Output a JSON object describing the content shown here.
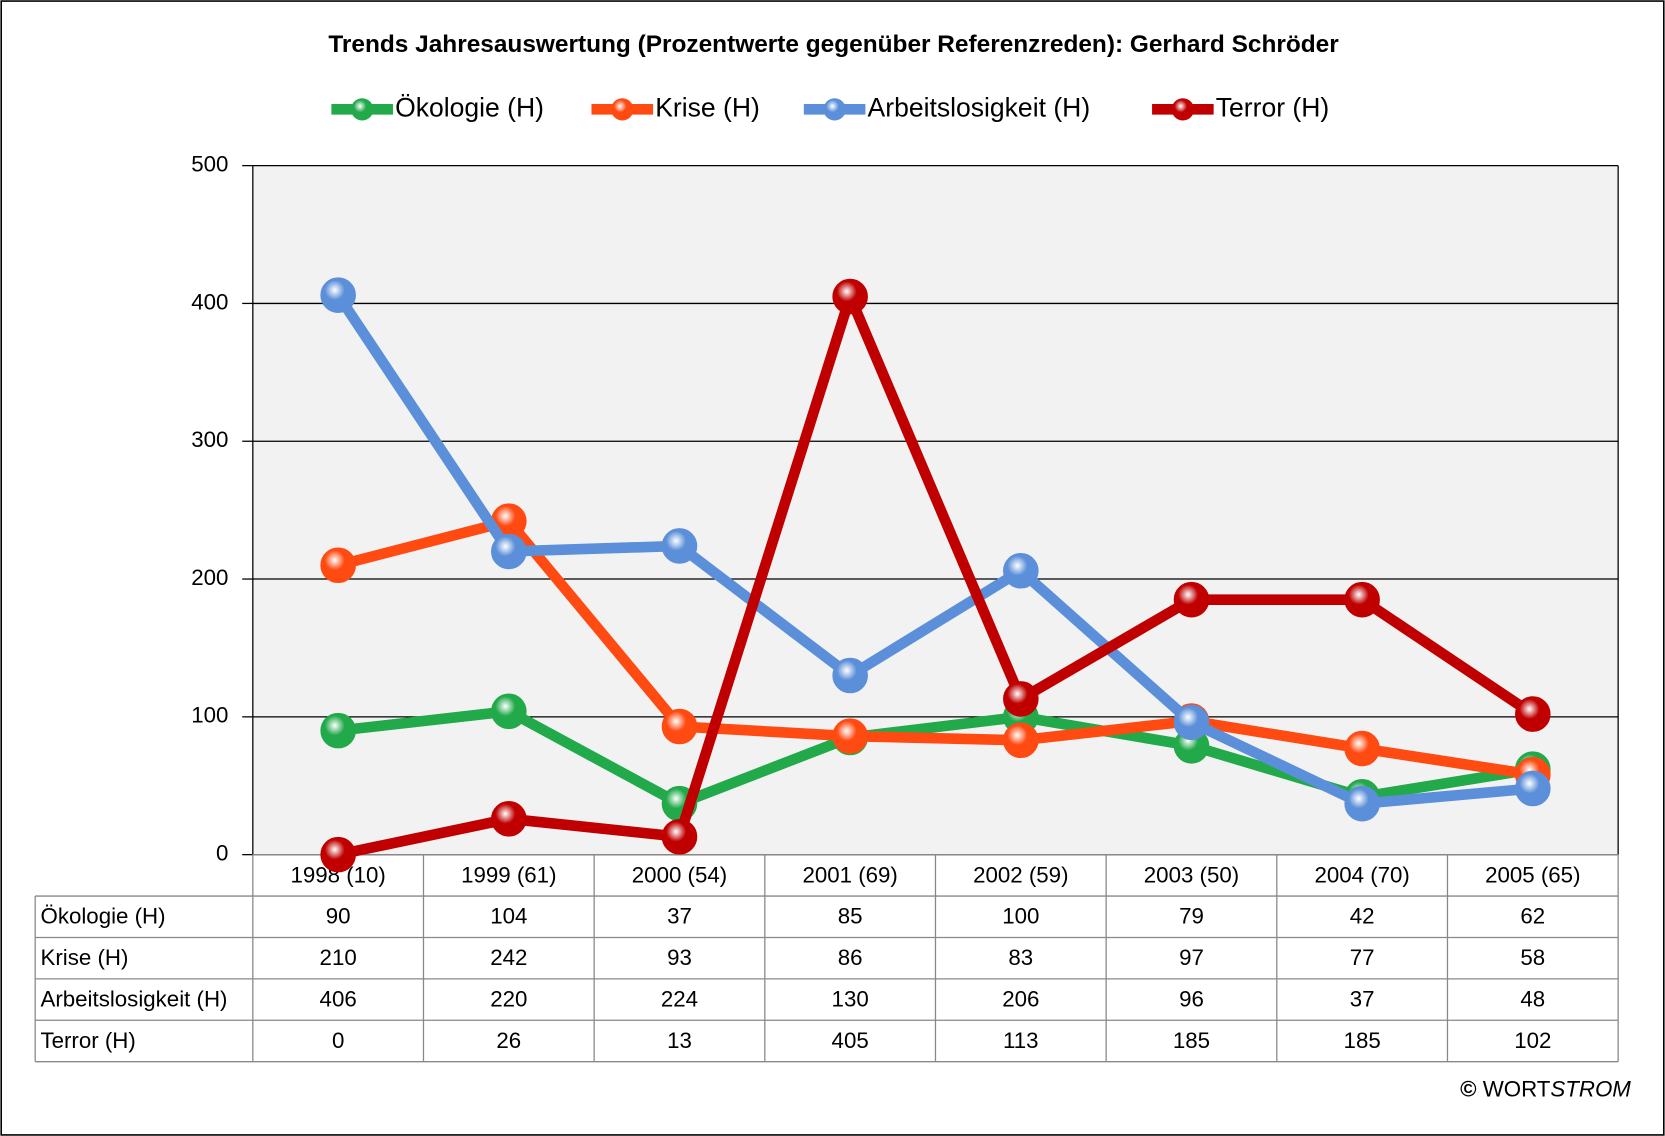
{
  "chart_data": {
    "type": "line",
    "title": "Trends Jahresauswertung (Prozentwerte gegenüber Referenzreden):  Gerhard Schröder",
    "categories": [
      "1998 (10)",
      "1999 (61)",
      "2000 (54)",
      "2001 (69)",
      "2002 (59)",
      "2003 (50)",
      "2004 (70)",
      "2005 (65)"
    ],
    "series": [
      {
        "name": "Ökologie (H)",
        "color": "#22a94a",
        "values": [
          90,
          104,
          37,
          85,
          100,
          79,
          42,
          62
        ]
      },
      {
        "name": "Krise (H)",
        "color": "#ff4a12",
        "values": [
          210,
          242,
          93,
          86,
          83,
          97,
          77,
          58
        ]
      },
      {
        "name": "Arbeitslosigkeit (H)",
        "color": "#5b8fd9",
        "values": [
          406,
          220,
          224,
          130,
          206,
          96,
          37,
          48
        ]
      },
      {
        "name": "Terror (H)",
        "color": "#c00000",
        "values": [
          0,
          26,
          13,
          405,
          113,
          185,
          185,
          102
        ]
      }
    ],
    "ylim": [
      0,
      500
    ],
    "yticks": [
      0,
      100,
      200,
      300,
      400,
      500
    ],
    "grid": true,
    "legend": "top",
    "credit": [
      "©",
      "WORT",
      "STROM"
    ]
  }
}
